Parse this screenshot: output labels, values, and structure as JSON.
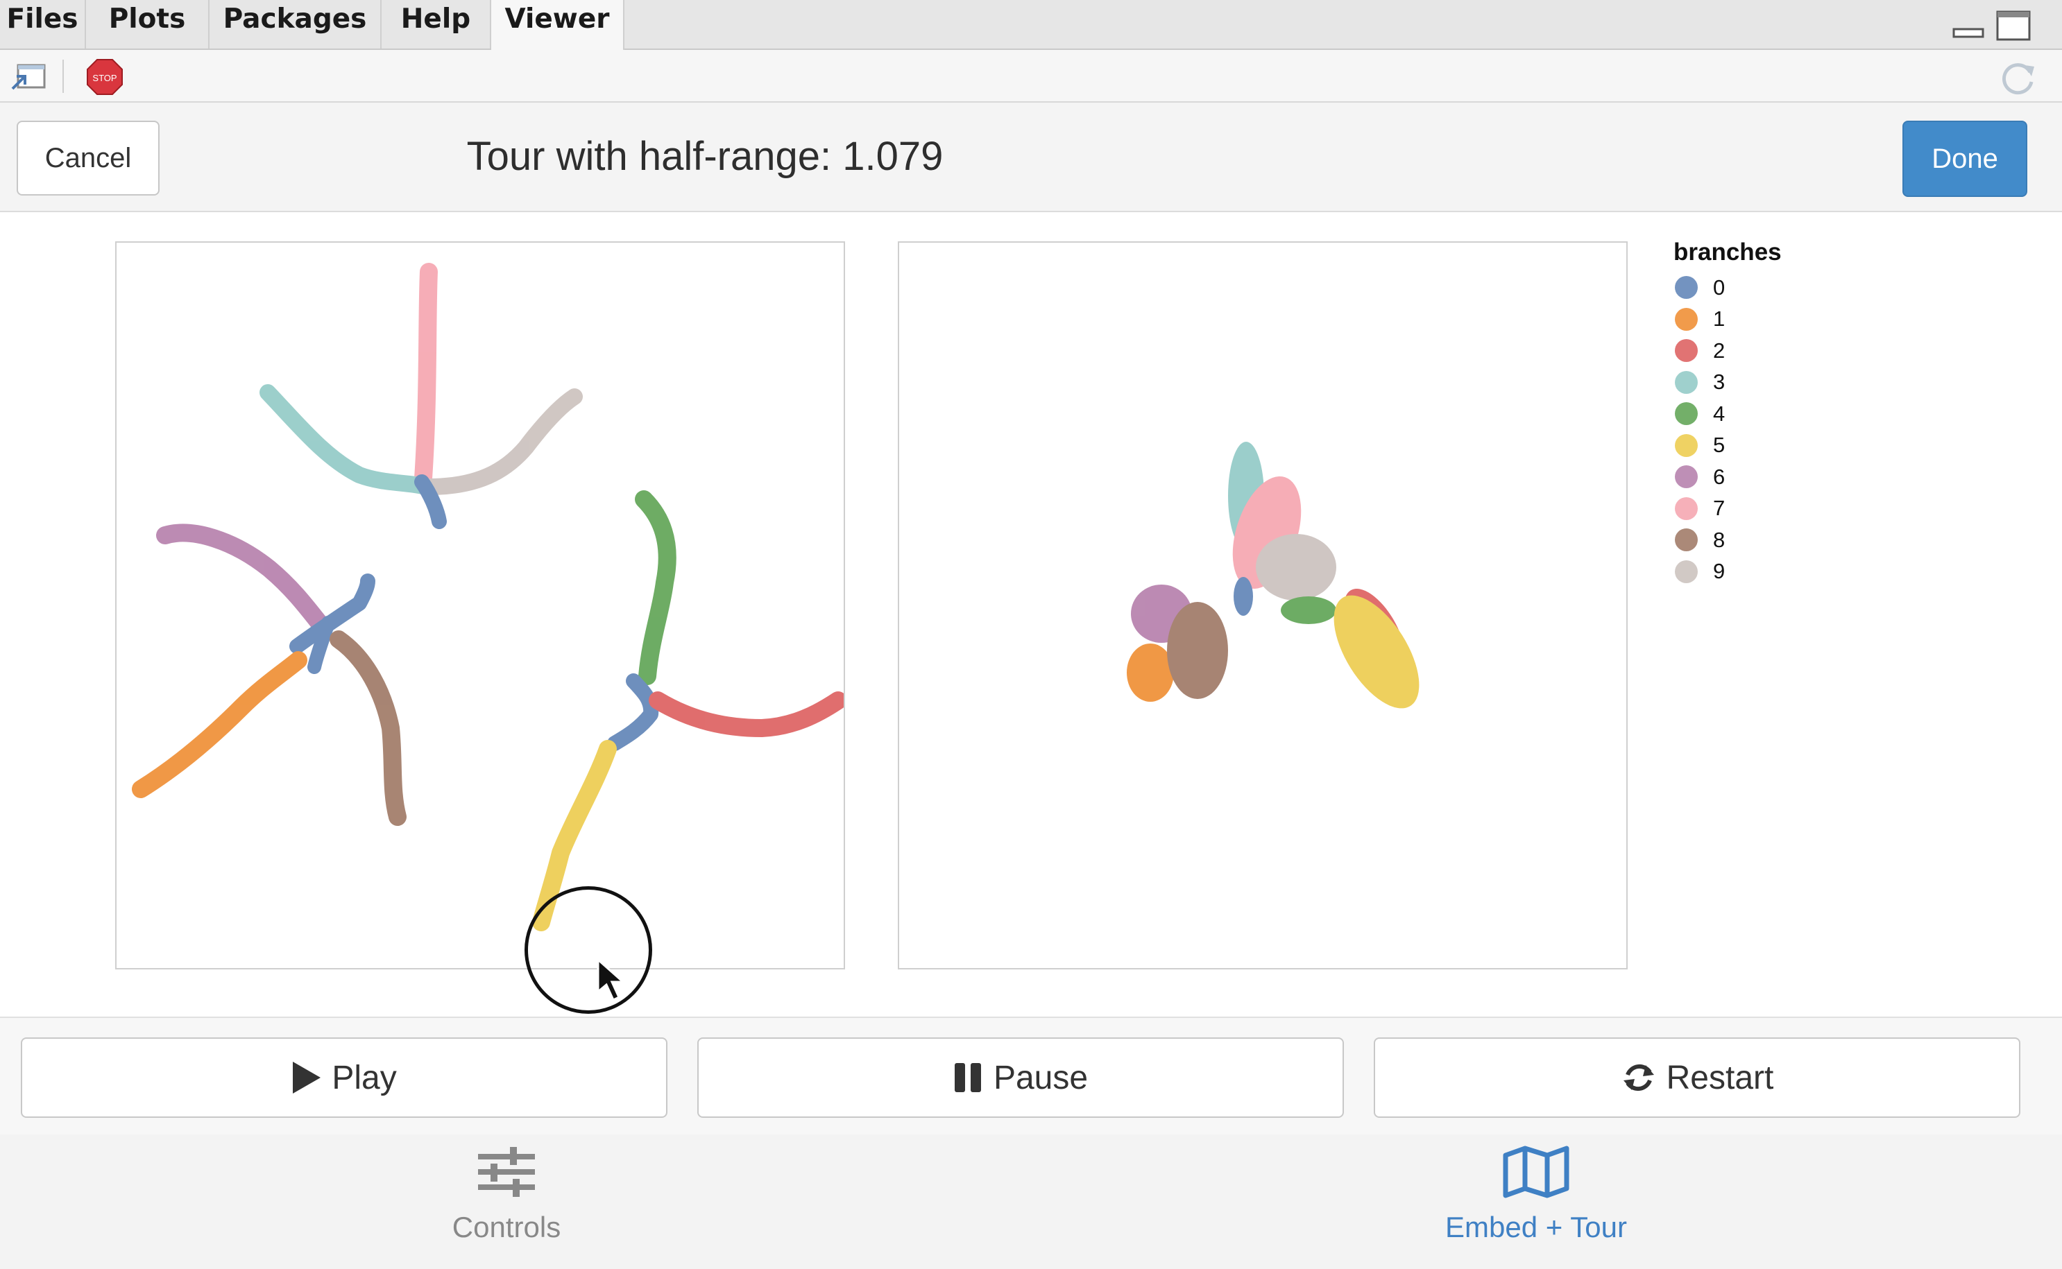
{
  "tabs": [
    {
      "label": "Files",
      "active": false
    },
    {
      "label": "Plots",
      "active": false
    },
    {
      "label": "Packages",
      "active": false
    },
    {
      "label": "Help",
      "active": false
    },
    {
      "label": "Viewer",
      "active": true
    }
  ],
  "toolbar": {
    "icons": [
      "show-in-window-icon",
      "stop-icon",
      "refresh-icon"
    ],
    "stop_label": "STOP"
  },
  "header": {
    "cancel_label": "Cancel",
    "title": "Tour with half-range: 1.079",
    "done_label": "Done",
    "done_color": "#428bca"
  },
  "legend": {
    "title": "branches",
    "items": [
      {
        "label": "0",
        "color": "#5b80b5"
      },
      {
        "label": "1",
        "color": "#ee8a2c"
      },
      {
        "label": "2",
        "color": "#dc5a5a"
      },
      {
        "label": "3",
        "color": "#8ec8c4"
      },
      {
        "label": "4",
        "color": "#5aa14f"
      },
      {
        "label": "5",
        "color": "#ecca48"
      },
      {
        "label": "6",
        "color": "#b37ba9"
      },
      {
        "label": "7",
        "color": "#f5a2ad"
      },
      {
        "label": "8",
        "color": "#9c7460"
      },
      {
        "label": "9",
        "color": "#c9bfbb"
      }
    ]
  },
  "controls": {
    "play_label": "Play",
    "pause_label": "Pause",
    "restart_label": "Restart"
  },
  "bottom_nav": {
    "items": [
      {
        "label": "Controls",
        "icon": "sliders-icon",
        "active": false
      },
      {
        "label": "Embed + Tour",
        "icon": "map-icon",
        "active": true
      }
    ]
  }
}
